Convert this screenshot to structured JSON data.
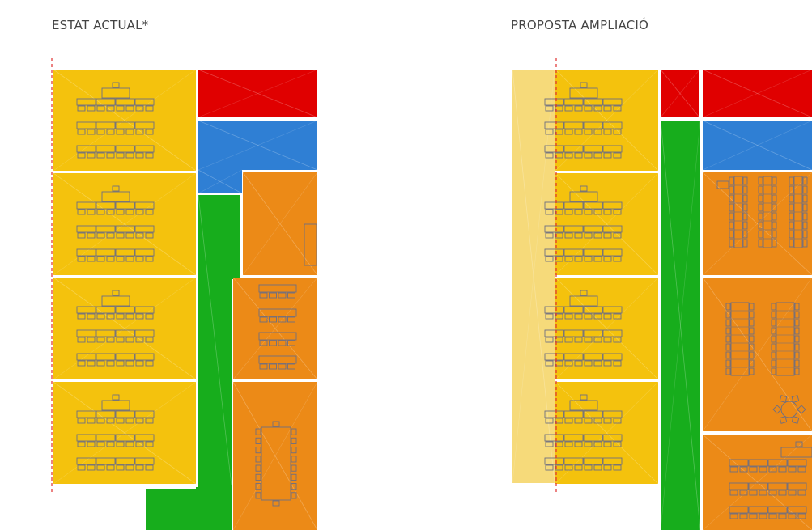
{
  "titles": {
    "current": "ESTAT ACTUAL*",
    "proposal": "PROPOSTA AMPLIACIÓ"
  },
  "colors": {
    "yellow": "#F4C20D",
    "light_yellow": "#F6DA7A",
    "red": "#E00000",
    "blue": "#2F7FD4",
    "green": "#17AD1C",
    "orange": "#EC8A17",
    "furniture_stroke": "#6E6E82",
    "boundary_line": "#E03030"
  },
  "zones": {
    "current": [
      "classroom",
      "classroom",
      "classroom",
      "classroom",
      "red-zone",
      "blue-zone",
      "green-corridor",
      "orange-room",
      "orange-room",
      "orange-room"
    ],
    "proposal": [
      "extension-strip",
      "classroom",
      "classroom",
      "classroom",
      "classroom",
      "red-zone",
      "blue-zone",
      "green-corridor",
      "orange-room",
      "orange-room",
      "orange-room"
    ]
  }
}
